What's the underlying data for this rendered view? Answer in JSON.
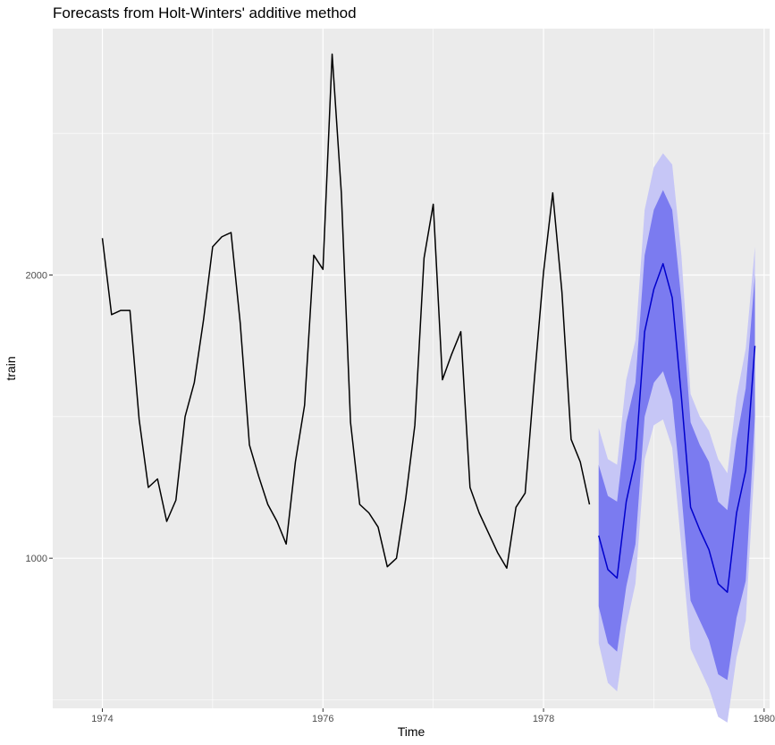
{
  "chart_data": {
    "type": "line",
    "title": "Forecasts from Holt-Winters' additive method",
    "xlabel": "Time",
    "ylabel": "train",
    "xlim": [
      1973.55,
      1980.05
    ],
    "ylim": [
      470,
      2870
    ],
    "x_ticks": [
      1974,
      1976,
      1978,
      1980
    ],
    "x_tick_labels": [
      "1974",
      "1976",
      "1978",
      "1980"
    ],
    "y_ticks": [
      1000,
      2000
    ],
    "y_minor_ticks": [
      500,
      1500,
      2500
    ],
    "y_tick_labels": [
      "1000",
      "2000"
    ],
    "grid": true,
    "colors": {
      "panel": "#ebebeb",
      "grid": "#ffffff",
      "observed_line": "#000000",
      "forecast_line": "#0000cc",
      "interval_80": "#7b7bf0",
      "interval_95": "#c6c6f6"
    },
    "observed": {
      "start": 1974.0,
      "step": 0.0833333,
      "values": [
        2130,
        1860,
        1875,
        1875,
        1490,
        1250,
        1280,
        1130,
        1205,
        1500,
        1620,
        1840,
        2100,
        2135,
        2150,
        1830,
        1400,
        1290,
        1190,
        1130,
        1050,
        1340,
        1540,
        2070,
        2020,
        2780,
        2290,
        1480,
        1190,
        1160,
        1110,
        970,
        1000,
        1210,
        1470,
        2060,
        2250,
        1630,
        1720,
        1800,
        1250,
        1160,
        1090,
        1020,
        965,
        1180,
        1230,
        1630,
        2010,
        2290,
        1940,
        1420,
        1340,
        1190
      ]
    },
    "forecast": {
      "start": 1978.5,
      "step": 0.0833333,
      "mean": [
        1080,
        960,
        930,
        1200,
        1350,
        1800,
        1950,
        2040,
        1920,
        1570,
        1180,
        1100,
        1030,
        910,
        880,
        1160,
        1310,
        1750
      ],
      "lo80": [
        830,
        700,
        670,
        900,
        1050,
        1500,
        1620,
        1660,
        1560,
        1230,
        850,
        780,
        710,
        590,
        570,
        790,
        920,
        1500
      ],
      "hi80": [
        1330,
        1220,
        1200,
        1480,
        1620,
        2070,
        2230,
        2300,
        2230,
        1910,
        1480,
        1400,
        1340,
        1200,
        1170,
        1420,
        1600,
        2000
      ],
      "lo95": [
        700,
        560,
        530,
        760,
        910,
        1350,
        1470,
        1490,
        1390,
        1040,
        680,
        610,
        540,
        440,
        420,
        650,
        780,
        1350
      ],
      "hi95": [
        1460,
        1350,
        1330,
        1630,
        1770,
        2230,
        2380,
        2430,
        2390,
        2070,
        1580,
        1500,
        1450,
        1350,
        1300,
        1570,
        1740,
        2100
      ]
    }
  }
}
